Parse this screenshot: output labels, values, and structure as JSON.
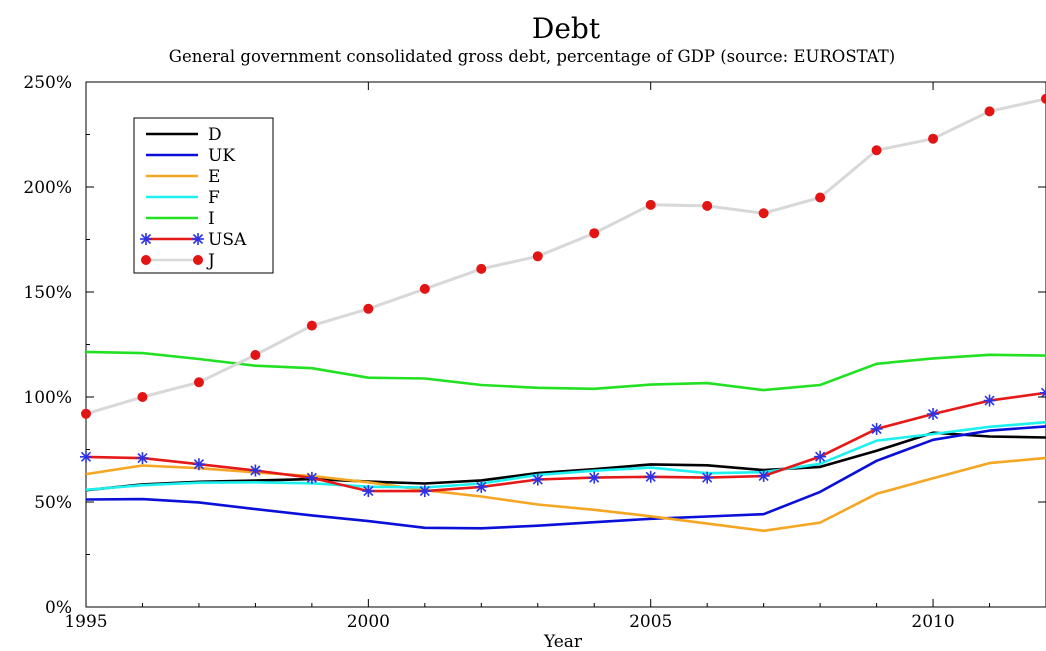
{
  "chart_data": {
    "type": "line",
    "title": "Debt",
    "subtitle": "General government consolidated gross debt, percentage of GDP (source: EUROSTAT)",
    "xlabel": "Year",
    "ylabel": "",
    "xlim": [
      1995,
      2012
    ],
    "ylim": [
      0,
      250
    ],
    "x_ticks": [
      1995,
      2000,
      2005,
      2010
    ],
    "y_ticks": [
      "0%",
      "50%",
      "100%",
      "150%",
      "200%",
      "250%"
    ],
    "grid": false,
    "legend_position": "top-left",
    "x": [
      1995,
      1996,
      1997,
      1998,
      1999,
      2000,
      2001,
      2002,
      2003,
      2004,
      2005,
      2006,
      2007,
      2008,
      2009,
      2010,
      2011,
      2012
    ],
    "series": [
      {
        "name": "D",
        "color": "#000000",
        "marker": "none",
        "values": [
          55.6,
          58.4,
          59.6,
          60.2,
          60.9,
          59.7,
          58.8,
          60.3,
          63.8,
          65.6,
          67.9,
          67.5,
          65.2,
          66.7,
          74.4,
          83.0,
          81.2,
          80.7
        ]
      },
      {
        "name": "UK",
        "color": "#0a10d8",
        "marker": "none",
        "values": [
          51.2,
          51.4,
          49.8,
          46.6,
          43.6,
          40.9,
          37.7,
          37.5,
          38.7,
          40.4,
          42.0,
          43.1,
          44.2,
          54.8,
          69.6,
          79.6,
          84.0,
          86.0
        ]
      },
      {
        "name": "E",
        "color": "#f5a623",
        "marker": "none",
        "values": [
          63.3,
          67.4,
          66.1,
          64.1,
          62.4,
          59.4,
          55.6,
          52.6,
          48.8,
          46.3,
          43.2,
          39.7,
          36.3,
          40.2,
          53.9,
          61.3,
          68.5,
          71.0
        ]
      },
      {
        "name": "F",
        "color": "#1ef0f0",
        "marker": "none",
        "values": [
          55.8,
          58.0,
          59.2,
          59.4,
          58.9,
          57.3,
          56.9,
          58.8,
          62.9,
          64.9,
          66.4,
          63.7,
          64.2,
          68.2,
          79.2,
          82.4,
          85.8,
          88.0
        ]
      },
      {
        "name": "I",
        "color": "#22e022",
        "marker": "none",
        "values": [
          121.5,
          120.9,
          118.1,
          114.9,
          113.7,
          109.2,
          108.8,
          105.7,
          104.4,
          103.9,
          105.9,
          106.6,
          103.3,
          105.7,
          115.8,
          118.4,
          120.1,
          119.7
        ]
      },
      {
        "name": "USA",
        "color": "#e61919",
        "marker": "star",
        "marker_color": "#2b33e6",
        "values": [
          71.5,
          70.9,
          68.0,
          65.0,
          61.5,
          55.2,
          55.2,
          57.2,
          60.7,
          61.6,
          62.0,
          61.6,
          62.4,
          71.6,
          84.8,
          91.9,
          98.3,
          102.0
        ]
      },
      {
        "name": "J",
        "color": "#d8d8d8",
        "marker": "dot",
        "marker_color": "#e21414",
        "values": [
          92.0,
          100.0,
          107.0,
          120.0,
          134.0,
          142.0,
          151.5,
          161.0,
          167.0,
          178.0,
          191.5,
          191.0,
          187.5,
          195.0,
          217.5,
          223.0,
          236.0,
          242.0
        ]
      }
    ]
  }
}
